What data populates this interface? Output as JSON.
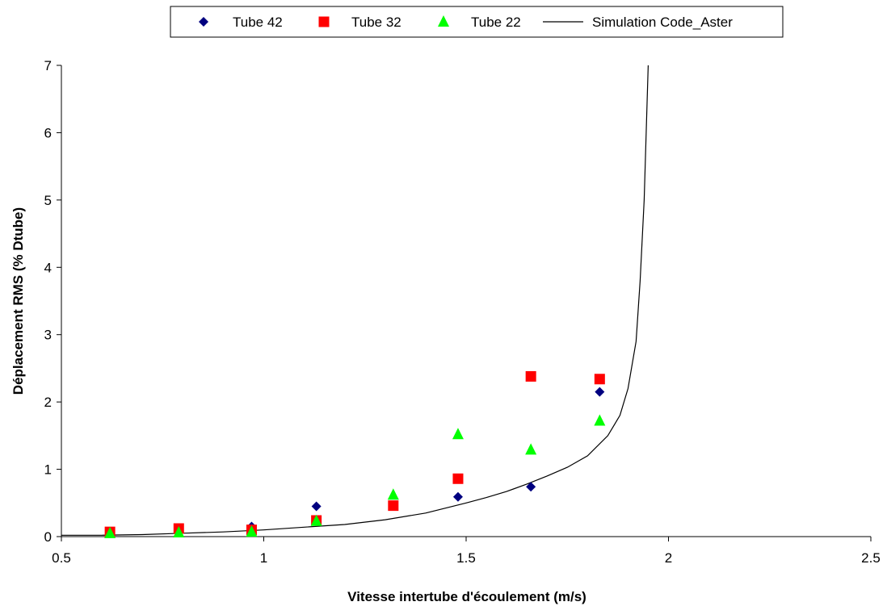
{
  "chart_data": {
    "type": "scatter",
    "title": "",
    "xlabel": "Vitesse intertube d'écoulement (m/s)",
    "ylabel": "Déplacement RMS (% Dtube)",
    "xlim": [
      0.5,
      2.5
    ],
    "ylim": [
      0,
      7
    ],
    "x_ticks": [
      0.5,
      1,
      1.5,
      2,
      2.5
    ],
    "x_tick_labels": [
      "0.5",
      "1",
      "1.5",
      "2",
      "2.5"
    ],
    "y_ticks": [
      0,
      1,
      2,
      3,
      4,
      5,
      6,
      7
    ],
    "y_tick_labels": [
      "0",
      "1",
      "2",
      "3",
      "4",
      "5",
      "6",
      "7"
    ],
    "grid": false,
    "legend_position": "top",
    "series": [
      {
        "name": "Tube 42",
        "kind": "scatter",
        "marker": "diamond",
        "color": "#000080",
        "points": [
          [
            0.62,
            0.05
          ],
          [
            0.79,
            0.08
          ],
          [
            0.97,
            0.15
          ],
          [
            1.13,
            0.45
          ],
          [
            1.48,
            0.59
          ],
          [
            1.66,
            0.74
          ],
          [
            1.83,
            2.15
          ]
        ]
      },
      {
        "name": "Tube 32",
        "kind": "scatter",
        "marker": "square",
        "color": "#ff0000",
        "points": [
          [
            0.62,
            0.07
          ],
          [
            0.79,
            0.12
          ],
          [
            0.97,
            0.1
          ],
          [
            1.13,
            0.24
          ],
          [
            1.32,
            0.46
          ],
          [
            1.48,
            0.86
          ],
          [
            1.66,
            2.38
          ],
          [
            1.83,
            2.34
          ]
        ]
      },
      {
        "name": "Tube 22",
        "kind": "scatter",
        "marker": "triangle",
        "color": "#00ff00",
        "points": [
          [
            0.62,
            0.05
          ],
          [
            0.79,
            0.06
          ],
          [
            0.97,
            0.07
          ],
          [
            1.13,
            0.23
          ],
          [
            1.32,
            0.62
          ],
          [
            1.48,
            1.52
          ],
          [
            1.66,
            1.29
          ],
          [
            1.83,
            1.72
          ]
        ]
      },
      {
        "name": "Simulation Code_Aster",
        "kind": "line",
        "color": "#000000",
        "points": [
          [
            0.5,
            0.02
          ],
          [
            0.6,
            0.02
          ],
          [
            0.7,
            0.03
          ],
          [
            0.8,
            0.05
          ],
          [
            0.9,
            0.07
          ],
          [
            1.0,
            0.1
          ],
          [
            1.1,
            0.14
          ],
          [
            1.2,
            0.18
          ],
          [
            1.3,
            0.25
          ],
          [
            1.4,
            0.35
          ],
          [
            1.5,
            0.5
          ],
          [
            1.55,
            0.58
          ],
          [
            1.6,
            0.67
          ],
          [
            1.65,
            0.78
          ],
          [
            1.7,
            0.9
          ],
          [
            1.75,
            1.03
          ],
          [
            1.8,
            1.2
          ],
          [
            1.85,
            1.5
          ],
          [
            1.88,
            1.8
          ],
          [
            1.9,
            2.2
          ],
          [
            1.92,
            2.9
          ],
          [
            1.93,
            3.8
          ],
          [
            1.94,
            5.0
          ],
          [
            1.945,
            6.0
          ],
          [
            1.95,
            7.0
          ]
        ]
      }
    ]
  }
}
